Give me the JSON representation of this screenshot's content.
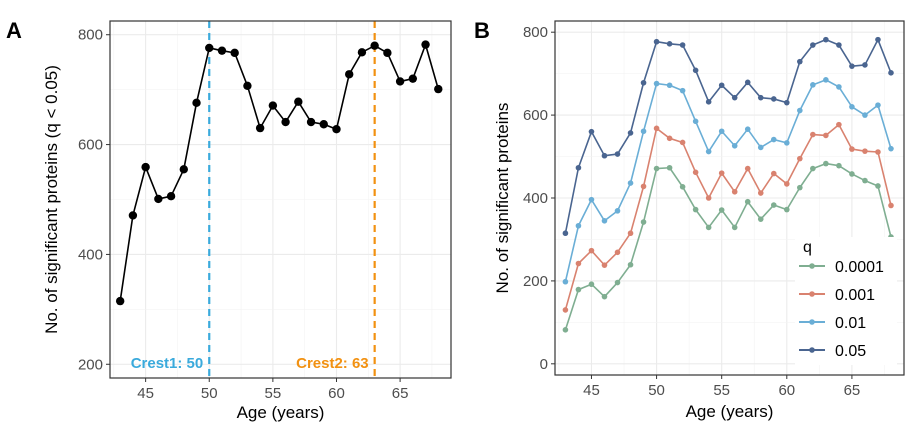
{
  "chart_data": [
    {
      "panel": "A",
      "type": "line",
      "title": "",
      "xlabel": "Age (years)",
      "ylabel": "No. of significant proteins (q < 0.05)",
      "xlim": [
        42.2,
        69
      ],
      "ylim": [
        175,
        825
      ],
      "xticks": [
        45,
        50,
        55,
        60,
        65
      ],
      "yticks": [
        200,
        400,
        600,
        800
      ],
      "grid": true,
      "x": [
        43,
        44,
        45,
        46,
        47,
        48,
        49,
        50,
        51,
        52,
        53,
        54,
        55,
        56,
        57,
        58,
        59,
        60,
        61,
        62,
        63,
        64,
        65,
        66,
        67,
        68
      ],
      "series": [
        {
          "name": "q < 0.05",
          "color": "#000000",
          "values": [
            315,
            471,
            559,
            501,
            506,
            555,
            676,
            776,
            771,
            767,
            707,
            630,
            671,
            641,
            678,
            641,
            637,
            628,
            728,
            768,
            780,
            767,
            715,
            720,
            782,
            701
          ]
        }
      ],
      "annotations": [
        {
          "type": "vline",
          "x": 50,
          "color": "#3aaadc",
          "style": "dashed",
          "label": "Crest1: 50"
        },
        {
          "type": "vline",
          "x": 63,
          "color": "#f29111",
          "style": "dashed",
          "label": "Crest2: 63"
        }
      ]
    },
    {
      "panel": "B",
      "type": "line",
      "title": "",
      "xlabel": "Age (years)",
      "ylabel": "No. of significant proteins",
      "xlim": [
        42.2,
        69
      ],
      "ylim": [
        -27,
        827
      ],
      "xticks": [
        45,
        50,
        55,
        60,
        65
      ],
      "yticks": [
        0,
        200,
        400,
        600,
        800
      ],
      "grid": true,
      "legend": {
        "title": "q",
        "position": "bottom-right-inside"
      },
      "x": [
        43,
        44,
        45,
        46,
        47,
        48,
        49,
        50,
        51,
        52,
        53,
        54,
        55,
        56,
        57,
        58,
        59,
        60,
        61,
        62,
        63,
        64,
        65,
        66,
        67,
        68
      ],
      "series": [
        {
          "name": "0.0001",
          "color": "#7fae91",
          "values": [
            82,
            179,
            192,
            162,
            196,
            239,
            342,
            471,
            473,
            427,
            372,
            329,
            371,
            329,
            391,
            349,
            383,
            372,
            425,
            471,
            483,
            478,
            458,
            442,
            429,
            306
          ]
        },
        {
          "name": "0.001",
          "color": "#d9826f",
          "values": [
            130,
            242,
            273,
            238,
            269,
            315,
            428,
            568,
            544,
            534,
            462,
            400,
            460,
            415,
            471,
            412,
            459,
            434,
            495,
            553,
            551,
            577,
            518,
            513,
            511,
            382
          ]
        },
        {
          "name": "0.01",
          "color": "#6aaed6",
          "values": [
            198,
            333,
            396,
            345,
            369,
            436,
            561,
            676,
            672,
            659,
            585,
            512,
            561,
            526,
            566,
            522,
            541,
            533,
            611,
            673,
            685,
            668,
            620,
            600,
            624,
            519
          ]
        },
        {
          "name": "0.05",
          "color": "#4a6590",
          "values": [
            315,
            473,
            560,
            502,
            506,
            557,
            678,
            777,
            772,
            769,
            708,
            632,
            672,
            642,
            679,
            642,
            639,
            630,
            729,
            769,
            782,
            769,
            718,
            721,
            782,
            702
          ]
        }
      ]
    }
  ],
  "panels": {
    "a_label": "A",
    "b_label": "B"
  }
}
